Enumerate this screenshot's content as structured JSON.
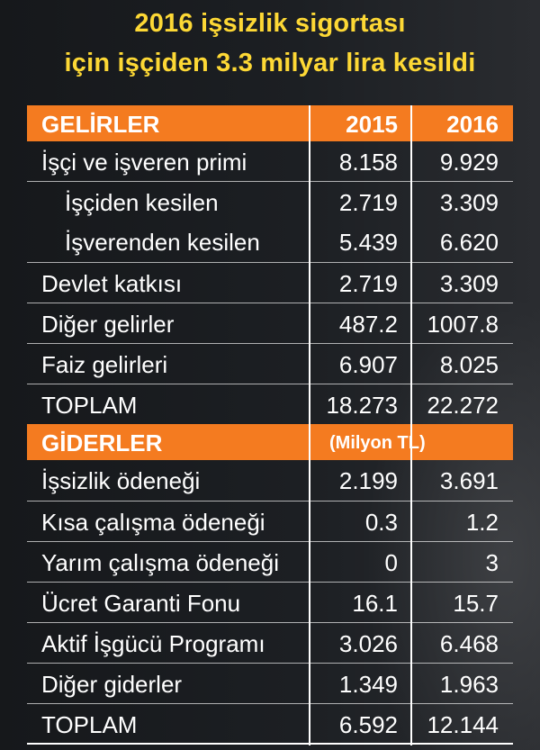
{
  "title": {
    "line1": "2016 işsizlik sigortası",
    "line2": "için işçiden 3.3 milyar lira kesildi"
  },
  "chart_data": {
    "type": "table",
    "income_section": {
      "header": "GELİRLER",
      "columns": [
        "2015",
        "2016"
      ],
      "rows": [
        {
          "label": "İşçi ve işveren primi",
          "v2015": "8.158",
          "v2016": "9.929"
        },
        {
          "label": "İşçiden kesilen",
          "v2015": "2.719",
          "v2016": "3.309"
        },
        {
          "label": "İşverenden kesilen",
          "v2015": "5.439",
          "v2016": "6.620"
        },
        {
          "label": "Devlet katkısı",
          "v2015": "2.719",
          "v2016": "3.309"
        },
        {
          "label": "Diğer gelirler",
          "v2015": "487.2",
          "v2016": "1007.8"
        },
        {
          "label": "Faiz gelirleri",
          "v2015": "6.907",
          "v2016": "8.025"
        },
        {
          "label": "TOPLAM",
          "v2015": "18.273",
          "v2016": "22.272"
        }
      ]
    },
    "expense_section": {
      "header": "GİDERLER",
      "unit": "(Milyon TL)",
      "rows": [
        {
          "label": "İşsizlik ödeneği",
          "v2015": "2.199",
          "v2016": "3.691"
        },
        {
          "label": "Kısa çalışma ödeneği",
          "v2015": "0.3",
          "v2016": "1.2"
        },
        {
          "label": "Yarım çalışma ödeneği",
          "v2015": "0",
          "v2016": "3"
        },
        {
          "label": "Ücret Garanti Fonu",
          "v2015": "16.1",
          "v2016": "15.7"
        },
        {
          "label": "Aktif İşgücü Programı",
          "v2015": "3.026",
          "v2016": "6.468"
        },
        {
          "label": "Diğer giderler",
          "v2015": "1.349",
          "v2016": "1.963"
        },
        {
          "label": "TOPLAM",
          "v2015": "6.592",
          "v2016": "12.144"
        }
      ]
    }
  },
  "colors": {
    "title": "#fdd835",
    "header_band": "#f47b20",
    "text": "#ffffff",
    "background": "#1a1c1f"
  }
}
